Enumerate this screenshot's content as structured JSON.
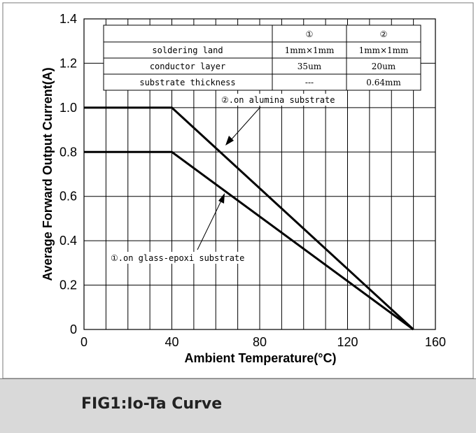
{
  "chart_data": {
    "type": "line",
    "x": [
      0,
      40,
      150
    ],
    "series": [
      {
        "name": "②.on alumina substrate",
        "values": [
          1.0,
          1.0,
          0.0
        ]
      },
      {
        "name": "①.on glass-epoxi substrate",
        "values": [
          0.8,
          0.8,
          0.0
        ]
      }
    ],
    "xlabel": "Ambient Temperature(°C)",
    "ylabel": "Average Forward Output Current(A)",
    "xlim": [
      0,
      160
    ],
    "ylim": [
      0,
      1.4
    ],
    "xticks": [
      "0",
      "40",
      "80",
      "120",
      "160"
    ],
    "yticks": [
      "0",
      "0.2",
      "0.4",
      "0.6",
      "0.8",
      "1.0",
      "1.2",
      "1.4"
    ],
    "grid": true,
    "table": {
      "header": [
        "",
        "①",
        "②"
      ],
      "rows": [
        [
          "soldering land",
          "1mm×1mm",
          "1mm×1mm"
        ],
        [
          "conductor layer",
          "35um",
          "20um"
        ],
        [
          "substrate thickness",
          "---",
          "0.64mm"
        ]
      ]
    },
    "annotations": [
      "②.on alumina substrate",
      "①.on glass-epoxi substrate"
    ]
  },
  "caption": "FIG1:Io-Ta Curve"
}
